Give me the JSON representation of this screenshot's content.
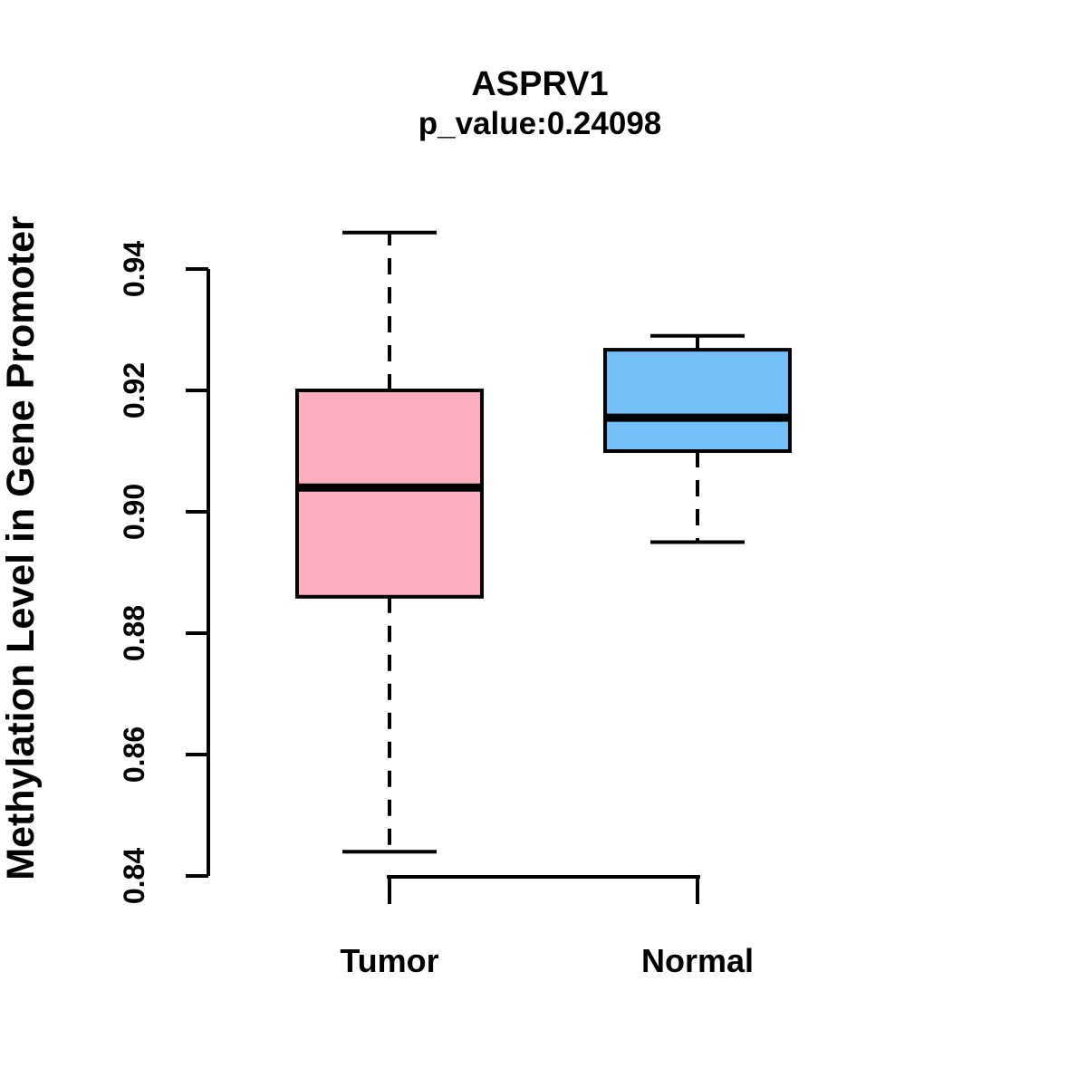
{
  "chart_data": {
    "type": "boxplot",
    "title": "ASPRV1",
    "subtitle": "p_value:0.24098",
    "ylabel": "Methylation Level in Gene Promoter",
    "xlabel": "",
    "categories": [
      "Tumor",
      "Normal"
    ],
    "series": [
      {
        "name": "Tumor",
        "color": "#FDAFC0",
        "whisker_low": 0.844,
        "q1": 0.886,
        "median": 0.904,
        "q3": 0.92,
        "whisker_high": 0.946
      },
      {
        "name": "Normal",
        "color": "#74BFF7",
        "whisker_low": 0.895,
        "q1": 0.91,
        "median": 0.9155,
        "q3": 0.9267,
        "whisker_high": 0.929
      }
    ],
    "ylim": [
      0.84,
      0.94
    ],
    "yticks": [
      0.84,
      0.86,
      0.88,
      0.9,
      0.92,
      0.94
    ],
    "ytick_labels": [
      "0.84",
      "0.86",
      "0.88",
      "0.90",
      "0.92",
      "0.94"
    ],
    "grid": false,
    "legend": false,
    "whisker_style": "dashed",
    "line_color": "#000000",
    "background_color": "#FFFFFF"
  }
}
